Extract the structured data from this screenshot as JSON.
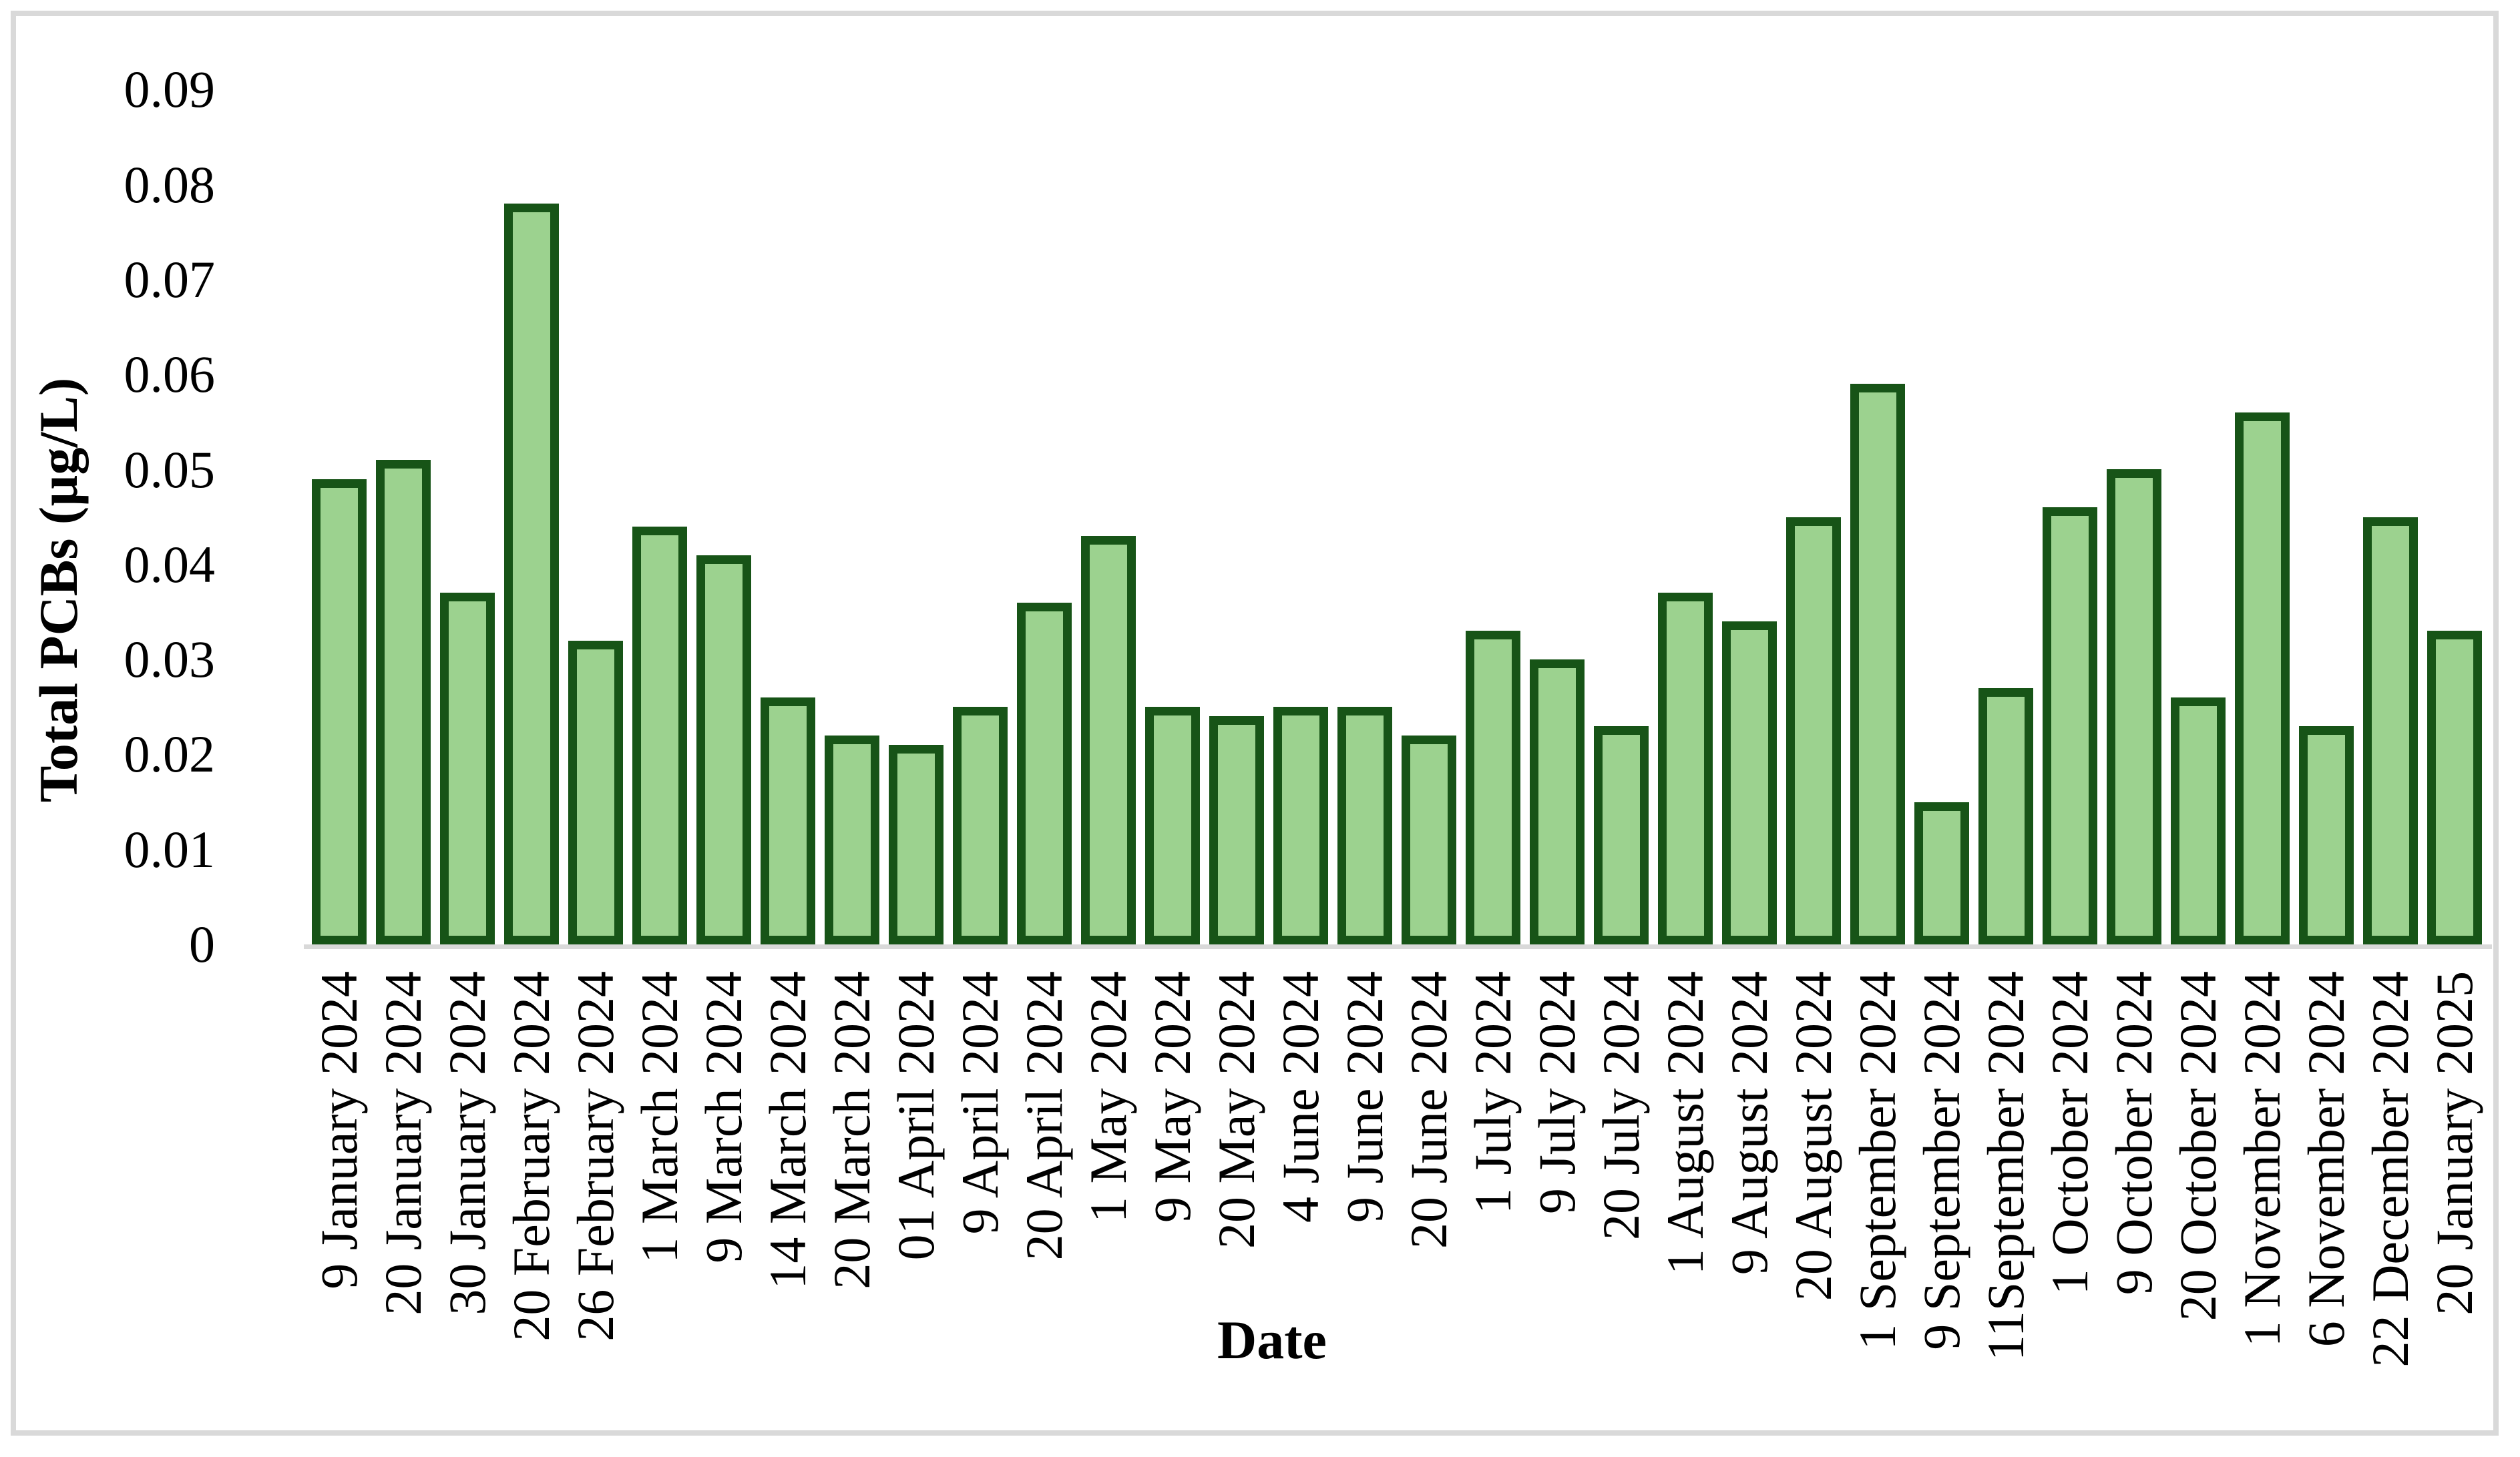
{
  "figure": {
    "background": "#ffffff",
    "frame_color": "#d9d9d9",
    "text_color": "#000000"
  },
  "chart_data": {
    "type": "bar",
    "title": "",
    "xlabel": "Date",
    "ylabel": "Total PCBs (µg/L)",
    "categories": [
      "9 January 2024",
      "20 January 2024",
      "30 January 2024",
      "20 February 2024",
      "26 February 2024",
      "1 March 2024",
      "9 March 2024",
      "14 March 2024",
      "20 March 2024",
      "01 April 2024",
      "9 April 2024",
      "20 April 2024",
      "1 May 2024",
      "9 May 2024",
      "20 May 2024",
      "4 June 2024",
      "9 June 2024",
      "20 June 2024",
      "1 July 2024",
      "9 July 2024",
      "20 July 2024",
      "1 August 2024",
      "9 August 2024",
      "20 August 2024",
      "1 September 2024",
      "9 September 2024",
      "11September 2024",
      "1 October 2024",
      "9 October 2024",
      "20 October 2024",
      "1 November 2024",
      "6 November 2024",
      "22 December 2024",
      "20 January 2025"
    ],
    "values": [
      0.049,
      0.051,
      0.037,
      0.078,
      0.032,
      0.044,
      0.041,
      0.026,
      0.022,
      0.021,
      0.025,
      0.036,
      0.043,
      0.025,
      0.024,
      0.025,
      0.025,
      0.022,
      0.033,
      0.03,
      0.023,
      0.037,
      0.034,
      0.045,
      0.059,
      0.015,
      0.027,
      0.046,
      0.05,
      0.026,
      0.056,
      0.023,
      0.045,
      0.033
    ],
    "ylim": [
      0,
      0.09
    ],
    "ytick_step": 0.01,
    "ytick_labels": [
      "0",
      "0.01",
      "0.02",
      "0.03",
      "0.04",
      "0.05",
      "0.06",
      "0.07",
      "0.08",
      "0.09"
    ],
    "grid": false,
    "legend_position": "none",
    "bar_fill": "#9cd28f",
    "bar_border": "#175417",
    "axis_line_color": "#d9d9d9"
  }
}
